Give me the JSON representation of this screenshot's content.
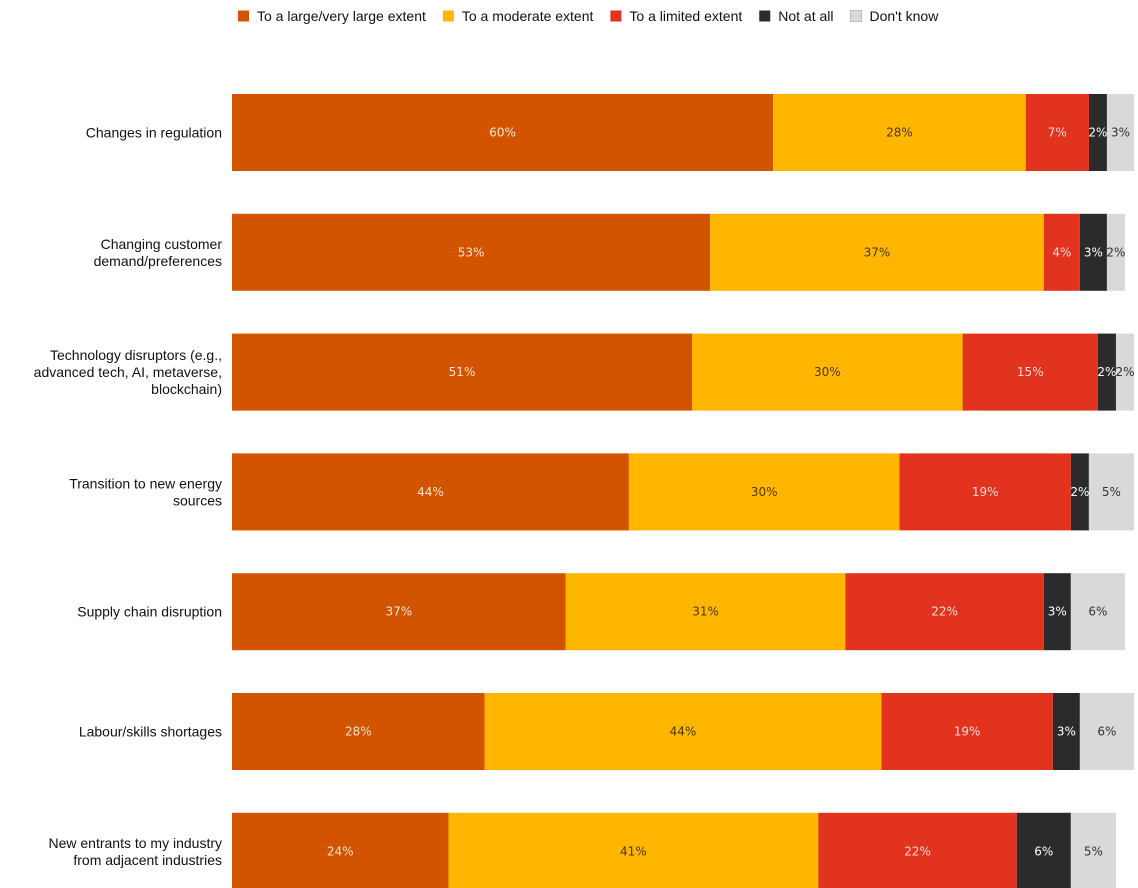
{
  "chart_data": {
    "type": "bar",
    "orientation": "horizontal",
    "stacked": true,
    "legend_position": "top",
    "grid": false,
    "categories": [
      [
        "Changes in regulation"
      ],
      [
        "Changing customer",
        "demand/preferences"
      ],
      [
        "Technology disruptors (e.g.,",
        "advanced tech, AI, metaverse,",
        "blockchain)"
      ],
      [
        "Transition to new energy",
        "sources"
      ],
      [
        "Supply chain disruption"
      ],
      [
        "Labour/skills shortages"
      ],
      [
        "New entrants to my industry",
        "from adjacent industries"
      ]
    ],
    "series": [
      {
        "name": "To a large/very large extent",
        "color": "#D35400",
        "label_color": "#FBE3D2",
        "values": [
          60,
          53,
          51,
          44,
          37,
          28,
          24
        ]
      },
      {
        "name": "To a moderate extent",
        "color": "#FFB600",
        "label_color": "#4A3A00",
        "values": [
          28,
          37,
          30,
          30,
          31,
          44,
          41
        ]
      },
      {
        "name": "To a limited extent",
        "color": "#E2331F",
        "label_color": "#FAD9D4",
        "values": [
          7,
          4,
          15,
          19,
          22,
          19,
          22
        ]
      },
      {
        "name": "Not at all",
        "color": "#2B2B2B",
        "label_color": "#FFFFFF",
        "values": [
          2,
          3,
          2,
          2,
          3,
          3,
          6
        ]
      },
      {
        "name": "Don't know",
        "color": "#D9D9D9",
        "label_color": "#333333",
        "values": [
          3,
          2,
          2,
          5,
          6,
          6,
          5
        ]
      }
    ],
    "value_suffix": "%"
  }
}
